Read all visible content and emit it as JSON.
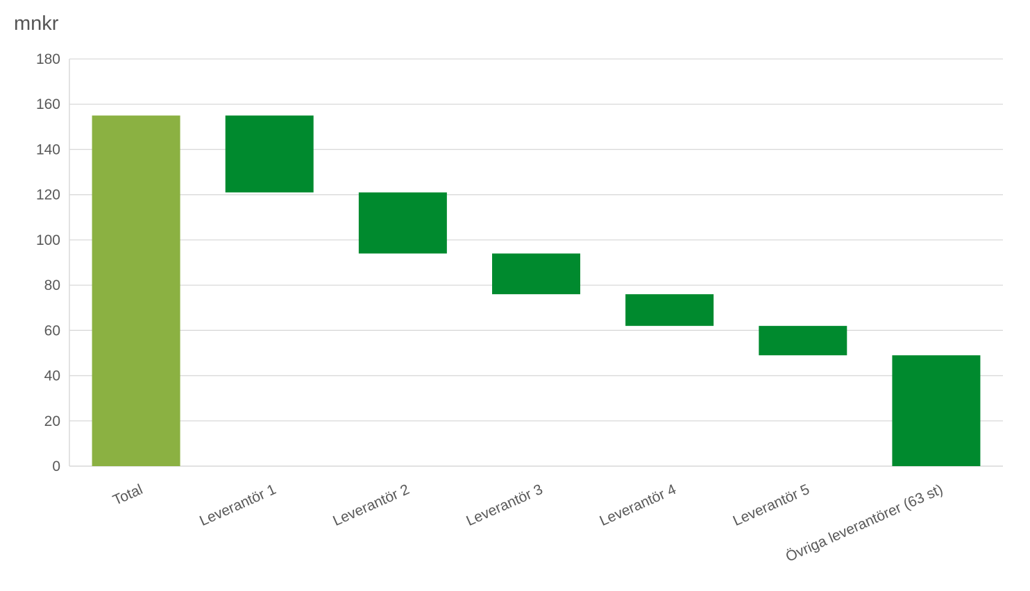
{
  "chart_data": {
    "type": "bar",
    "subtype": "waterfall",
    "unit_label": "mnkr",
    "categories": [
      "Total",
      "Leverantör 1",
      "Leverantör 2",
      "Leverantör 3",
      "Leverantör 4",
      "Leverantör 5",
      "Övriga leverantörer (63 st)"
    ],
    "bars": [
      {
        "category": "Total",
        "start": 0,
        "end": 155,
        "kind": "total"
      },
      {
        "category": "Leverantör 1",
        "start": 121,
        "end": 155,
        "kind": "step"
      },
      {
        "category": "Leverantör 2",
        "start": 94,
        "end": 121,
        "kind": "step"
      },
      {
        "category": "Leverantör 3",
        "start": 76,
        "end": 94,
        "kind": "step"
      },
      {
        "category": "Leverantör 4",
        "start": 62,
        "end": 76,
        "kind": "step"
      },
      {
        "category": "Leverantör 5",
        "start": 49,
        "end": 62,
        "kind": "step"
      },
      {
        "category": "Övriga leverantörer (63 st)",
        "start": 0,
        "end": 49,
        "kind": "step"
      }
    ],
    "ylim": [
      0,
      180
    ],
    "yticks": [
      0,
      20,
      40,
      60,
      80,
      100,
      120,
      140,
      160,
      180
    ],
    "grid": true,
    "legend": "none",
    "colors": {
      "total": "#8bb142",
      "step": "#008a2e"
    }
  }
}
